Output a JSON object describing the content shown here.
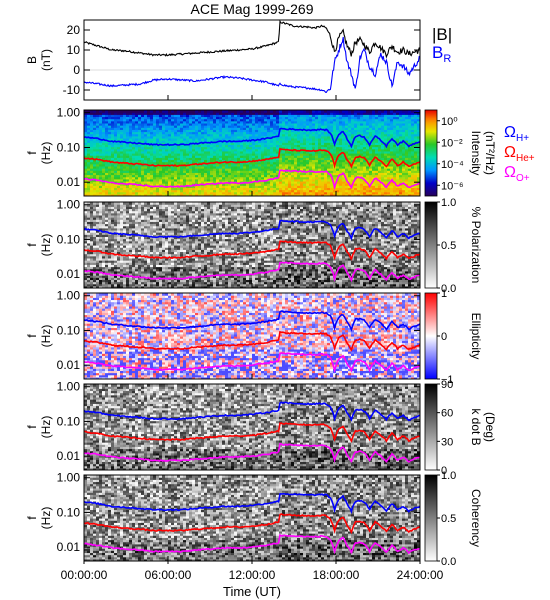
{
  "chart_data": {
    "title": "ACE Mag 1999-269",
    "type": "line",
    "xlabel": "Time (UT)",
    "x_ticks": [
      "00:00:00",
      "06:00:00",
      "12:00:00",
      "18:00:00",
      "24:00:00"
    ],
    "x_tick_hours": [
      0,
      6,
      12,
      18,
      24
    ],
    "xlim_hours": [
      0,
      24
    ],
    "panels": [
      {
        "id": "b-field",
        "type": "line",
        "ylabel_line1": "B",
        "ylabel_line2": "(nT)",
        "ylim": [
          -15,
          25
        ],
        "y_ticks": [
          "20",
          "10",
          "0",
          "-10"
        ],
        "y_tick_values": [
          20,
          10,
          0,
          -10
        ],
        "legend": "right",
        "series": [
          {
            "name": "|B|",
            "color": "#000000",
            "x": [
              0,
              1,
              2,
              3,
              4,
              5,
              6,
              7,
              8,
              9,
              10,
              11,
              12,
              13,
              13.9,
              14.0,
              14.5,
              15,
              16,
              16.5,
              17,
              17.3,
              17.6,
              17.9,
              18.2,
              18.5,
              18.8,
              19.1,
              19.4,
              19.7,
              20,
              20.4,
              20.8,
              21.2,
              21.6,
              22,
              22.4,
              22.8,
              23.2,
              23.6,
              24
            ],
            "values": [
              14,
              12,
              10,
              9.5,
              8.5,
              7.5,
              7.5,
              8,
              8.5,
              9,
              9.5,
              10,
              10.5,
              12,
              14,
              24,
              23,
              22,
              21.5,
              21,
              22,
              21,
              17,
              9,
              16,
              19,
              12,
              8,
              14,
              15,
              13,
              9,
              14,
              11,
              8,
              12,
              9,
              10,
              8,
              9,
              10
            ]
          },
          {
            "name": "B_R",
            "color": "#0000ff",
            "x": [
              0,
              1,
              2,
              3,
              4,
              5,
              6,
              7,
              8,
              9,
              10,
              11,
              12,
              13,
              13.9,
              14.0,
              14.5,
              15,
              16,
              16.5,
              17,
              17.3,
              17.6,
              17.9,
              18.2,
              18.5,
              18.8,
              19.1,
              19.4,
              19.7,
              20,
              20.4,
              20.8,
              21.2,
              21.6,
              22,
              22.4,
              22.8,
              23.2,
              23.6,
              24
            ],
            "values": [
              -6,
              -7,
              -8,
              -7.5,
              -7,
              -5,
              -4.5,
              -5,
              -5.5,
              -4.5,
              -3.5,
              -4,
              -5,
              -6,
              -8,
              -7,
              -8,
              -8.5,
              -9,
              -9.5,
              -10,
              -11,
              -9,
              4,
              10,
              16,
              4,
              -2,
              -10,
              6,
              10,
              2,
              -2,
              8,
              4,
              -8,
              4,
              2,
              -2,
              2,
              6
            ]
          }
        ]
      },
      {
        "id": "power",
        "type": "heatmap",
        "ylabel_line1": "f",
        "ylabel_line2": "(Hz)",
        "y_scale": "log",
        "ylim": [
          0.004,
          1.2
        ],
        "y_ticks": [
          "1.00",
          "0.10",
          "0.01"
        ],
        "y_tick_values": [
          1.0,
          0.1,
          0.01
        ],
        "colorbar": {
          "label_line1": "Intensity",
          "label_line2": "(nT²/Hz)",
          "scale": "log",
          "ticks": [
            "10⁰",
            "10⁻²",
            "10⁻⁴",
            "10⁻⁶"
          ],
          "tick_values": [
            0,
            -2,
            -4,
            -6
          ],
          "range": [
            -7,
            1
          ],
          "palette": "rainbow"
        }
      },
      {
        "id": "polarization",
        "type": "heatmap",
        "ylabel_line1": "f",
        "ylabel_line2": "(Hz)",
        "y_scale": "log",
        "ylim": [
          0.004,
          1.2
        ],
        "y_ticks": [
          "1.00",
          "0.10",
          "0.01"
        ],
        "y_tick_values": [
          1.0,
          0.1,
          0.01
        ],
        "colorbar": {
          "label_line1": "% Polarization",
          "label_line2": "",
          "scale": "linear",
          "ticks": [
            "1.0",
            "0.5",
            "0.0"
          ],
          "tick_values": [
            1,
            0.5,
            0
          ],
          "range": [
            0,
            1
          ],
          "palette": "gray"
        }
      },
      {
        "id": "ellipticity",
        "type": "heatmap",
        "ylabel_line1": "f",
        "ylabel_line2": "(Hz)",
        "y_scale": "log",
        "ylim": [
          0.004,
          1.2
        ],
        "y_ticks": [
          "1.00",
          "0.10",
          "0.01"
        ],
        "y_tick_values": [
          1.0,
          0.1,
          0.01
        ],
        "colorbar": {
          "label_line1": "Ellipticity",
          "label_line2": "",
          "scale": "linear",
          "ticks": [
            "1",
            "0",
            "−1"
          ],
          "tick_values": [
            1,
            0,
            -1
          ],
          "range": [
            -1,
            1
          ],
          "palette": "bwr"
        }
      },
      {
        "id": "kdotb",
        "type": "heatmap",
        "ylabel_line1": "f",
        "ylabel_line2": "(Hz)",
        "y_scale": "log",
        "ylim": [
          0.004,
          1.2
        ],
        "y_ticks": [
          "1.00",
          "0.10",
          "0.01"
        ],
        "y_tick_values": [
          1.0,
          0.1,
          0.01
        ],
        "colorbar": {
          "label_line1": "k dot B",
          "label_line2": "(Deg)",
          "scale": "linear",
          "ticks": [
            "90",
            "60",
            "30",
            "0"
          ],
          "tick_values": [
            90,
            60,
            30,
            0
          ],
          "range": [
            0,
            90
          ],
          "palette": "gray"
        }
      },
      {
        "id": "coherency",
        "type": "heatmap",
        "ylabel_line1": "f",
        "ylabel_line2": "(Hz)",
        "y_scale": "log",
        "ylim": [
          0.004,
          1.2
        ],
        "y_ticks": [
          "1.00",
          "0.10",
          "0.01"
        ],
        "y_tick_values": [
          1.0,
          0.1,
          0.01
        ],
        "colorbar": {
          "label_line1": "Coherency",
          "label_line2": "",
          "scale": "linear",
          "ticks": [
            "1.0",
            "0.5",
            "0.0"
          ],
          "tick_values": [
            1,
            0.5,
            0
          ],
          "range": [
            0,
            1
          ],
          "palette": "gray"
        }
      }
    ],
    "gyrofrequency_lines": {
      "x": [
        0,
        1,
        2,
        3,
        4,
        5,
        6,
        7,
        8,
        9,
        10,
        11,
        12,
        13,
        13.9,
        14.0,
        14.5,
        15,
        16,
        16.5,
        17,
        17.3,
        17.6,
        17.9,
        18.2,
        18.5,
        18.8,
        19.1,
        19.4,
        19.7,
        20,
        20.4,
        20.8,
        21.2,
        21.6,
        22,
        22.4,
        22.8,
        23.2,
        23.6,
        24
      ],
      "series": [
        {
          "name": "ΩH+",
          "color": "#0000ff",
          "values": [
            0.2,
            0.18,
            0.15,
            0.14,
            0.13,
            0.12,
            0.12,
            0.12,
            0.13,
            0.14,
            0.15,
            0.15,
            0.16,
            0.18,
            0.21,
            0.35,
            0.34,
            0.33,
            0.32,
            0.32,
            0.33,
            0.32,
            0.26,
            0.12,
            0.24,
            0.29,
            0.17,
            0.11,
            0.21,
            0.22,
            0.2,
            0.12,
            0.21,
            0.16,
            0.11,
            0.18,
            0.12,
            0.15,
            0.11,
            0.13,
            0.15
          ]
        },
        {
          "name": "ΩHe+",
          "color": "#ff0000",
          "values": [
            0.05,
            0.045,
            0.038,
            0.035,
            0.033,
            0.03,
            0.03,
            0.03,
            0.033,
            0.035,
            0.038,
            0.038,
            0.04,
            0.045,
            0.053,
            0.088,
            0.085,
            0.083,
            0.08,
            0.08,
            0.083,
            0.08,
            0.065,
            0.03,
            0.06,
            0.073,
            0.043,
            0.028,
            0.053,
            0.055,
            0.05,
            0.03,
            0.053,
            0.04,
            0.028,
            0.045,
            0.03,
            0.038,
            0.028,
            0.033,
            0.038
          ]
        },
        {
          "name": "ΩO+",
          "color": "#ff00ff",
          "values": [
            0.0125,
            0.0113,
            0.0095,
            0.0088,
            0.0083,
            0.0075,
            0.0075,
            0.0075,
            0.0083,
            0.0088,
            0.0095,
            0.0095,
            0.01,
            0.0113,
            0.0133,
            0.022,
            0.0213,
            0.0208,
            0.02,
            0.02,
            0.0208,
            0.02,
            0.0163,
            0.0075,
            0.015,
            0.0183,
            0.0108,
            0.007,
            0.0133,
            0.0138,
            0.0125,
            0.0075,
            0.0133,
            0.01,
            0.007,
            0.0113,
            0.0075,
            0.0095,
            0.007,
            0.0083,
            0.0095
          ]
        }
      ]
    }
  }
}
